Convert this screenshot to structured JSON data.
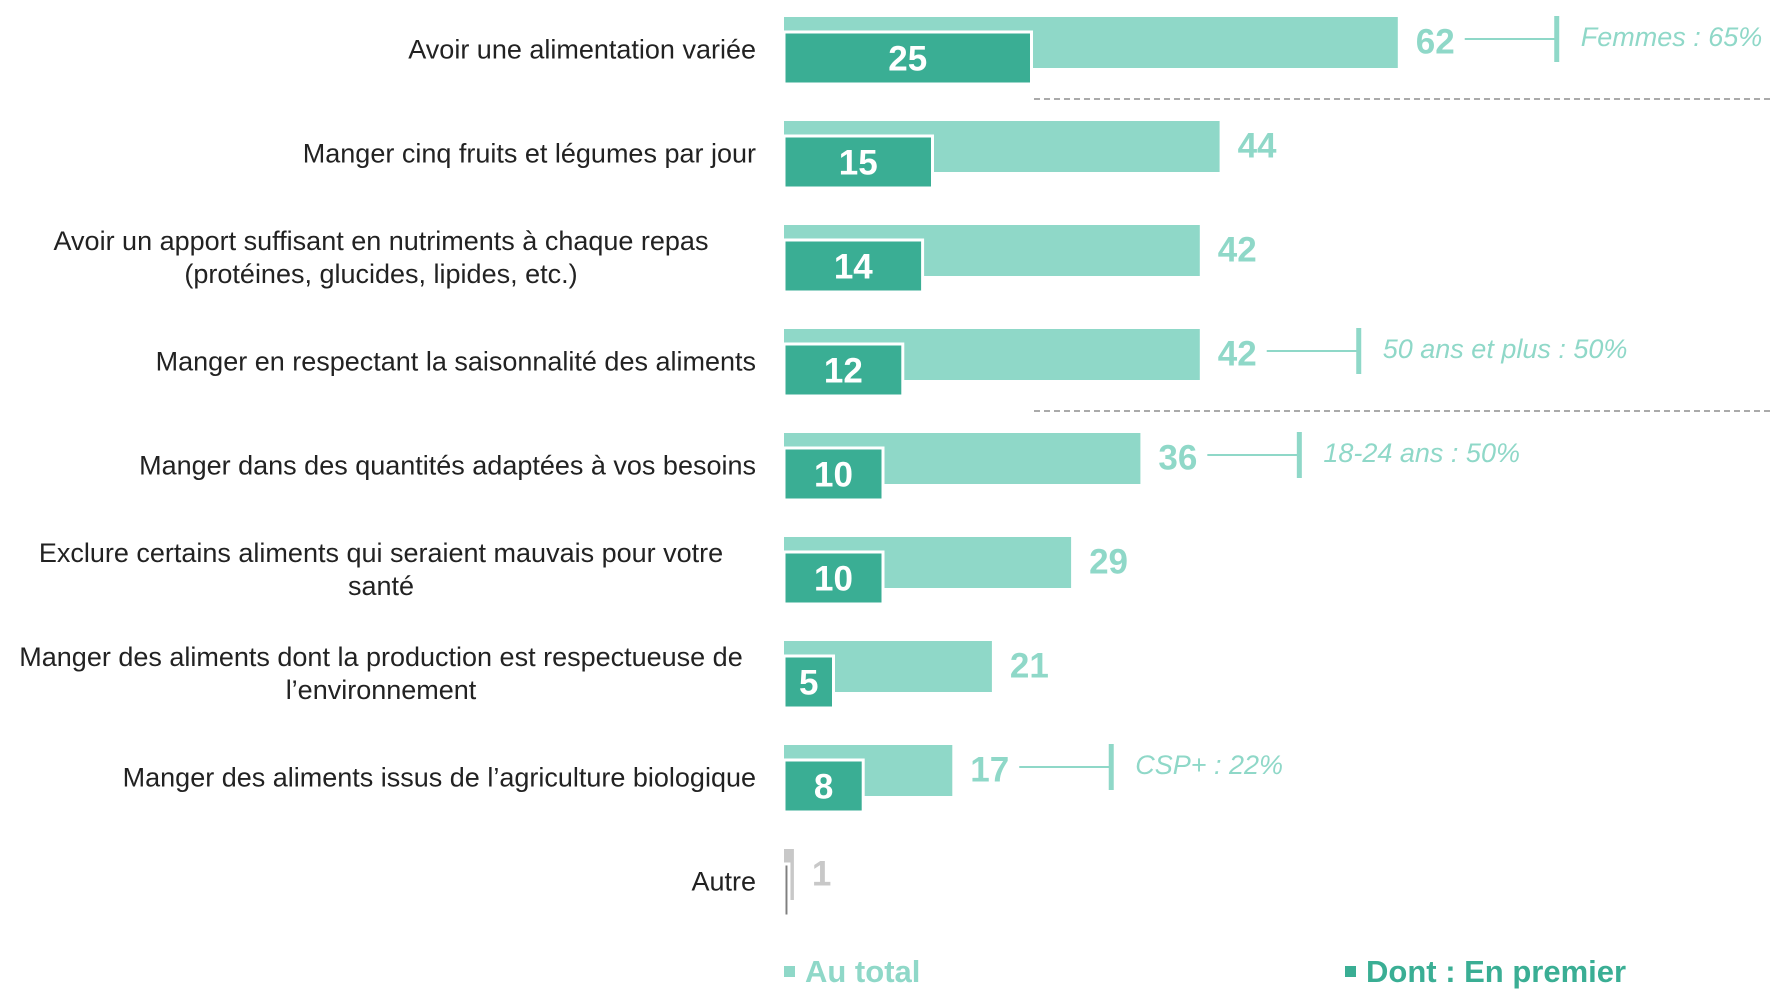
{
  "chart_data": {
    "type": "bar",
    "orientation": "horizontal",
    "categories": [
      "Avoir une alimentation variée",
      "Manger cinq fruits et légumes par jour",
      "Avoir un apport suffisant en nutriments à chaque repas (protéines, glucides, lipides, etc.)",
      "Manger en respectant la saisonnalité des aliments",
      "Manger dans des quantités adaptées à vos besoins",
      "Exclure certains aliments qui seraient mauvais pour votre santé",
      "Manger des aliments dont la production est respectueuse de l’environnement",
      "Manger des aliments issus de l’agriculture biologique",
      "Autre"
    ],
    "series": [
      {
        "name": "Au total",
        "color": "#8fd8c8",
        "colors": [
          "#8fd8c8",
          "#8fd8c8",
          "#8fd8c8",
          "#8fd8c8",
          "#8fd8c8",
          "#8fd8c8",
          "#8fd8c8",
          "#8fd8c8",
          "#c8c8c8"
        ],
        "values": [
          62,
          44,
          42,
          42,
          36,
          29,
          21,
          17,
          1
        ]
      },
      {
        "name": "Dont : En premier",
        "color": "#3aae94",
        "colors": [
          "#3aae94",
          "#3aae94",
          "#3aae94",
          "#3aae94",
          "#3aae94",
          "#3aae94",
          "#3aae94",
          "#3aae94",
          "#7f7f7f"
        ],
        "values": [
          25,
          15,
          14,
          12,
          10,
          10,
          5,
          8,
          0.5
        ],
        "value_labels": [
          "25",
          "15",
          "14",
          "12",
          "10",
          "10",
          "5",
          "8",
          null
        ]
      }
    ],
    "xlim": [
      0,
      100
    ],
    "separators_after": [
      0,
      3
    ],
    "annotations": [
      {
        "index": 0,
        "text": "Femmes : 65%"
      },
      {
        "index": 3,
        "text": "50 ans et plus : 50%"
      },
      {
        "index": 4,
        "text": "18-24 ans : 50%"
      },
      {
        "index": 7,
        "text": "CSP+ : 22%"
      }
    ]
  }
}
